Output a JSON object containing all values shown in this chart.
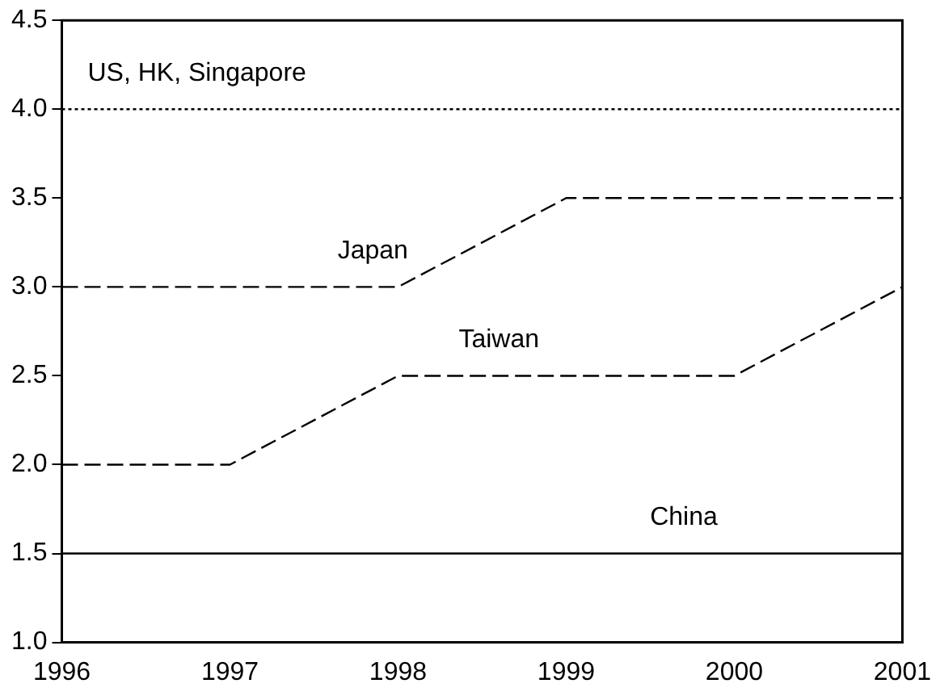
{
  "chart_data": {
    "type": "line",
    "x": [
      1996,
      1997,
      1998,
      1999,
      2000,
      2001
    ],
    "series": [
      {
        "name": "US, HK, Singapore",
        "color": "#000000",
        "line_style": "dotted",
        "values": [
          4,
          4,
          4,
          4,
          4,
          4
        ]
      },
      {
        "name": "Japan",
        "color": "#000000",
        "line_style": "dashed",
        "values": [
          3,
          3,
          3,
          3.5,
          3.5,
          3.5
        ]
      },
      {
        "name": "Taiwan",
        "color": "#000000",
        "line_style": "dashed",
        "values": [
          2,
          2,
          2.5,
          2.5,
          2.5,
          3
        ]
      },
      {
        "name": "China",
        "color": "#000000",
        "line_style": "solid",
        "values": [
          1.5,
          1.5,
          1.5,
          1.5,
          1.5,
          1.5
        ]
      }
    ],
    "xlim": [
      1996,
      2001
    ],
    "xticks": [
      1996,
      1997,
      1998,
      1999,
      2000,
      2001
    ],
    "ylim": [
      1,
      4.5
    ],
    "yticks": [
      {
        "value": 1,
        "label": "1.0"
      },
      {
        "value": 1.5,
        "label": "1.5"
      },
      {
        "value": 2,
        "label": "2.0"
      },
      {
        "value": 2.5,
        "label": "2.5"
      },
      {
        "value": 3,
        "label": "3.0"
      },
      {
        "value": 3.5,
        "label": "3.5"
      },
      {
        "value": 4,
        "label": "4.0"
      },
      {
        "value": 4.5,
        "label": "4.5"
      }
    ],
    "grid": false,
    "legend": false,
    "marker": "none"
  }
}
